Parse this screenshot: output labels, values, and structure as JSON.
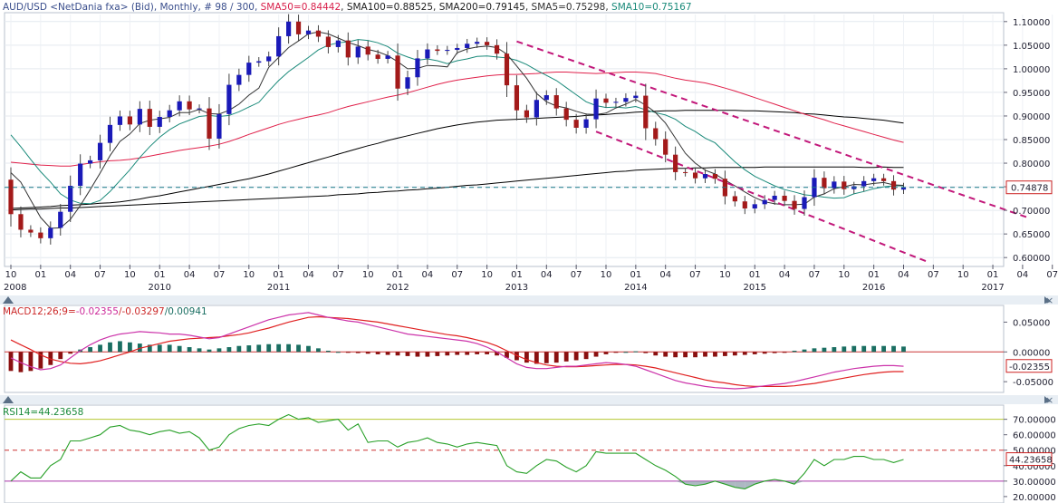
{
  "colors": {
    "up": "#1a1ab8",
    "down": "#a31a1a",
    "sma50": "#e0204a",
    "sma100": "#000000",
    "sma200": "#000000",
    "sma5": "#333333",
    "sma10": "#1a8a7a",
    "channel": "#c2187a",
    "macd": "#cc33aa",
    "signal": "#e02020",
    "hist_pos": "#1a6e62",
    "hist_neg": "#8a1010",
    "rsi": "#28a028",
    "rsi_upper": "#b4c832",
    "rsi_mid": "#cc3333",
    "rsi_lower": "#aa33aa",
    "current": "#1a7a8a"
  },
  "header": {
    "symbol": "AUD/USD <NetDania fxa> (Bid), Monthly, # 98 / 300, ",
    "sma50": "SMA50=0.84442",
    "sma100": "SMA100=0.88525",
    "sma200": "SMA200=0.79145",
    "sma5": "SMA5=0.75298",
    "sma10": "SMA10=0.75167"
  },
  "price_axis": [
    "1.10000",
    "1.05000",
    "1.00000",
    "0.95000",
    "0.90000",
    "0.85000",
    "0.80000",
    "0.75000",
    "0.70000",
    "0.65000",
    "0.60000"
  ],
  "current_price_label": "0.74878",
  "month_labels": [
    "10",
    "01",
    "04",
    "07",
    "10",
    "01",
    "04",
    "07",
    "10",
    "01",
    "04",
    "07",
    "10",
    "01",
    "04",
    "07",
    "10",
    "01",
    "04",
    "07",
    "10",
    "01",
    "04",
    "07",
    "10",
    "01",
    "04",
    "07",
    "10",
    "01",
    "04",
    "07",
    "10",
    "01",
    "04",
    "07"
  ],
  "year_labels": [
    "2008",
    "2010",
    "2011",
    "2012",
    "2013",
    "2014",
    "2015",
    "2016",
    "2017"
  ],
  "macd_header": {
    "name": "MACD12;26;9=",
    "v1": "-0.02355",
    "v2": "/-0.03297",
    "v3": "/0.00941"
  },
  "macd_axis": [
    "0.05000",
    "0.00000",
    "-0.05000"
  ],
  "macd_current_label": "-0.02355",
  "rsi_header": "RSI14=44.23658",
  "rsi_axis": [
    "70.00000",
    "60.00000",
    "50.00000",
    "40.00000",
    "30.00000",
    "20.00000"
  ],
  "rsi_current_label": "44.23658",
  "chart_data": {
    "type": "candlestick",
    "title": "AUD/USD <NetDania fxa> (Bid), Monthly",
    "price_range": [
      0.585,
      1.115
    ],
    "macd_range": [
      -0.065,
      0.075
    ],
    "rsi_range": [
      17,
      78
    ],
    "start_month": "2008-10",
    "closes": [
      0.692,
      0.659,
      0.653,
      0.641,
      0.663,
      0.697,
      0.752,
      0.799,
      0.806,
      0.843,
      0.881,
      0.899,
      0.882,
      0.915,
      0.877,
      0.898,
      0.912,
      0.931,
      0.914,
      0.916,
      0.852,
      0.904,
      0.966,
      0.987,
      1.013,
      1.016,
      1.026,
      1.069,
      1.1,
      1.073,
      1.081,
      1.068,
      1.046,
      1.06,
      1.024,
      1.047,
      1.03,
      1.021,
      1.028,
      0.958,
      0.982,
      1.022,
      1.041,
      1.038,
      1.04,
      1.044,
      1.053,
      1.057,
      1.05,
      1.032,
      0.965,
      0.912,
      0.897,
      0.934,
      0.944,
      0.916,
      0.892,
      0.875,
      0.893,
      0.937,
      0.928,
      0.93,
      0.938,
      0.943,
      0.874,
      0.851,
      0.818,
      0.781,
      0.78,
      0.768,
      0.777,
      0.767,
      0.73,
      0.719,
      0.704,
      0.713,
      0.722,
      0.731,
      0.72,
      0.703,
      0.728,
      0.769,
      0.747,
      0.761,
      0.745,
      0.751,
      0.762,
      0.768,
      0.762,
      0.744,
      0.749
    ],
    "sma5": [
      0.78,
      0.76,
      0.722,
      0.685,
      0.662,
      0.663,
      0.681,
      0.71,
      0.744,
      0.779,
      0.816,
      0.846,
      0.862,
      0.884,
      0.891,
      0.894,
      0.897,
      0.907,
      0.907,
      0.914,
      0.905,
      0.904,
      0.912,
      0.925,
      0.944,
      0.959,
      1.003,
      1.024,
      1.045,
      1.059,
      1.074,
      1.078,
      1.074,
      1.065,
      1.056,
      1.049,
      1.041,
      1.036,
      1.028,
      1.015,
      1.0,
      1.001,
      1.007,
      1.006,
      1.004,
      1.034,
      1.042,
      1.046,
      1.048,
      1.045,
      1.031,
      1.006,
      0.98,
      0.948,
      0.93,
      0.921,
      0.917,
      0.91,
      0.904,
      0.903,
      0.906,
      0.917,
      0.925,
      0.935,
      0.923,
      0.907,
      0.885,
      0.853,
      0.821,
      0.8,
      0.785,
      0.777,
      0.764,
      0.752,
      0.739,
      0.727,
      0.718,
      0.714,
      0.712,
      0.712,
      0.713,
      0.728,
      0.735,
      0.746,
      0.75,
      0.755,
      0.754,
      0.757,
      0.759,
      0.754,
      0.753
    ],
    "sma10": [
      0.86,
      0.835,
      0.808,
      0.782,
      0.76,
      0.735,
      0.722,
      0.715,
      0.714,
      0.721,
      0.74,
      0.763,
      0.786,
      0.812,
      0.835,
      0.855,
      0.871,
      0.883,
      0.891,
      0.899,
      0.901,
      0.899,
      0.901,
      0.909,
      0.919,
      0.929,
      0.953,
      0.975,
      0.994,
      1.009,
      1.024,
      1.04,
      1.05,
      1.055,
      1.057,
      1.062,
      1.06,
      1.055,
      1.047,
      1.033,
      1.025,
      1.018,
      1.021,
      1.017,
      1.011,
      1.017,
      1.021,
      1.026,
      1.027,
      1.025,
      1.023,
      1.018,
      1.009,
      0.997,
      0.986,
      0.975,
      0.96,
      0.945,
      0.93,
      0.922,
      0.918,
      0.919,
      0.917,
      0.92,
      0.913,
      0.907,
      0.902,
      0.893,
      0.878,
      0.867,
      0.853,
      0.843,
      0.823,
      0.803,
      0.786,
      0.772,
      0.762,
      0.752,
      0.744,
      0.739,
      0.733,
      0.731,
      0.728,
      0.726,
      0.727,
      0.735,
      0.74,
      0.746,
      0.75,
      0.752,
      0.752
    ],
    "sma50": [
      0.802,
      0.8,
      0.798,
      0.796,
      0.795,
      0.794,
      0.794,
      0.797,
      0.8,
      0.803,
      0.805,
      0.806,
      0.808,
      0.811,
      0.815,
      0.819,
      0.823,
      0.827,
      0.83,
      0.833,
      0.836,
      0.84,
      0.846,
      0.853,
      0.861,
      0.868,
      0.875,
      0.882,
      0.888,
      0.893,
      0.898,
      0.902,
      0.907,
      0.914,
      0.92,
      0.925,
      0.93,
      0.935,
      0.94,
      0.944,
      0.949,
      0.955,
      0.961,
      0.967,
      0.972,
      0.976,
      0.979,
      0.982,
      0.985,
      0.987,
      0.988,
      0.988,
      0.989,
      0.99,
      0.992,
      0.993,
      0.993,
      0.992,
      0.991,
      0.99,
      0.991,
      0.992,
      0.993,
      0.993,
      0.992,
      0.99,
      0.985,
      0.98,
      0.976,
      0.973,
      0.97,
      0.965,
      0.959,
      0.953,
      0.946,
      0.939,
      0.932,
      0.925,
      0.918,
      0.911,
      0.904,
      0.898,
      0.892,
      0.885,
      0.879,
      0.873,
      0.867,
      0.861,
      0.855,
      0.849,
      0.844
    ],
    "sma100": [
      0.704,
      0.705,
      0.706,
      0.707,
      0.708,
      0.71,
      0.711,
      0.712,
      0.713,
      0.715,
      0.716,
      0.718,
      0.721,
      0.724,
      0.728,
      0.731,
      0.735,
      0.739,
      0.743,
      0.747,
      0.751,
      0.755,
      0.759,
      0.763,
      0.767,
      0.772,
      0.777,
      0.783,
      0.789,
      0.795,
      0.801,
      0.807,
      0.813,
      0.819,
      0.825,
      0.831,
      0.837,
      0.842,
      0.848,
      0.853,
      0.858,
      0.863,
      0.868,
      0.873,
      0.877,
      0.881,
      0.884,
      0.887,
      0.889,
      0.891,
      0.892,
      0.893,
      0.894,
      0.895,
      0.896,
      0.897,
      0.898,
      0.899,
      0.901,
      0.902,
      0.903,
      0.905,
      0.906,
      0.908,
      0.909,
      0.91,
      0.911,
      0.911,
      0.912,
      0.912,
      0.912,
      0.912,
      0.912,
      0.912,
      0.911,
      0.911,
      0.91,
      0.909,
      0.908,
      0.907,
      0.905,
      0.904,
      0.902,
      0.9,
      0.898,
      0.897,
      0.895,
      0.893,
      0.891,
      0.888,
      0.885
    ],
    "sma200": [
      0.701,
      0.702,
      0.703,
      0.703,
      0.704,
      0.705,
      0.705,
      0.706,
      0.707,
      0.708,
      0.709,
      0.71,
      0.711,
      0.712,
      0.713,
      0.714,
      0.715,
      0.716,
      0.717,
      0.718,
      0.719,
      0.72,
      0.721,
      0.722,
      0.723,
      0.724,
      0.725,
      0.726,
      0.727,
      0.728,
      0.729,
      0.73,
      0.731,
      0.733,
      0.734,
      0.735,
      0.737,
      0.738,
      0.74,
      0.741,
      0.743,
      0.744,
      0.746,
      0.747,
      0.749,
      0.751,
      0.753,
      0.754,
      0.756,
      0.758,
      0.76,
      0.762,
      0.764,
      0.766,
      0.768,
      0.77,
      0.772,
      0.774,
      0.776,
      0.778,
      0.78,
      0.782,
      0.783,
      0.785,
      0.786,
      0.787,
      0.788,
      0.789,
      0.789,
      0.79,
      0.79,
      0.791,
      0.791,
      0.791,
      0.791,
      0.791,
      0.792,
      0.792,
      0.792,
      0.792,
      0.792,
      0.792,
      0.792,
      0.792,
      0.792,
      0.792,
      0.791,
      0.791,
      0.792,
      0.791,
      0.791
    ],
    "macd_line": [
      -0.01,
      -0.018,
      -0.025,
      -0.03,
      -0.028,
      -0.022,
      -0.01,
      0.002,
      0.012,
      0.02,
      0.026,
      0.03,
      0.032,
      0.034,
      0.033,
      0.032,
      0.03,
      0.03,
      0.028,
      0.025,
      0.022,
      0.024,
      0.03,
      0.036,
      0.042,
      0.048,
      0.054,
      0.058,
      0.062,
      0.064,
      0.066,
      0.062,
      0.058,
      0.055,
      0.052,
      0.05,
      0.046,
      0.042,
      0.038,
      0.034,
      0.03,
      0.028,
      0.026,
      0.024,
      0.022,
      0.02,
      0.018,
      0.014,
      0.008,
      0.0,
      -0.01,
      -0.02,
      -0.026,
      -0.028,
      -0.028,
      -0.026,
      -0.024,
      -0.024,
      -0.022,
      -0.02,
      -0.018,
      -0.019,
      -0.021,
      -0.024,
      -0.03,
      -0.036,
      -0.042,
      -0.048,
      -0.052,
      -0.055,
      -0.058,
      -0.06,
      -0.061,
      -0.062,
      -0.061,
      -0.059,
      -0.057,
      -0.055,
      -0.053,
      -0.05,
      -0.046,
      -0.042,
      -0.038,
      -0.034,
      -0.031,
      -0.028,
      -0.026,
      -0.024,
      -0.023,
      -0.023,
      -0.024
    ],
    "macd_signal": [
      0.02,
      0.012,
      0.004,
      -0.005,
      -0.012,
      -0.016,
      -0.019,
      -0.02,
      -0.018,
      -0.015,
      -0.01,
      -0.005,
      0.0,
      0.006,
      0.01,
      0.014,
      0.018,
      0.02,
      0.022,
      0.023,
      0.024,
      0.025,
      0.027,
      0.029,
      0.032,
      0.036,
      0.04,
      0.045,
      0.05,
      0.054,
      0.058,
      0.059,
      0.058,
      0.057,
      0.056,
      0.054,
      0.052,
      0.05,
      0.047,
      0.044,
      0.041,
      0.038,
      0.035,
      0.032,
      0.029,
      0.027,
      0.024,
      0.02,
      0.016,
      0.01,
      0.002,
      -0.006,
      -0.013,
      -0.018,
      -0.022,
      -0.024,
      -0.025,
      -0.025,
      -0.024,
      -0.023,
      -0.022,
      -0.021,
      -0.021,
      -0.022,
      -0.024,
      -0.027,
      -0.031,
      -0.035,
      -0.039,
      -0.043,
      -0.047,
      -0.05,
      -0.052,
      -0.055,
      -0.057,
      -0.058,
      -0.058,
      -0.058,
      -0.058,
      -0.057,
      -0.055,
      -0.053,
      -0.05,
      -0.047,
      -0.044,
      -0.041,
      -0.038,
      -0.036,
      -0.034,
      -0.033,
      -0.033
    ],
    "macd_hist": [
      -0.032,
      -0.034,
      -0.032,
      -0.028,
      -0.022,
      -0.012,
      -0.003,
      0.004,
      0.008,
      0.012,
      0.016,
      0.018,
      0.016,
      0.014,
      0.012,
      0.012,
      0.012,
      0.01,
      0.008,
      0.006,
      0.004,
      0.006,
      0.008,
      0.01,
      0.011,
      0.012,
      0.013,
      0.013,
      0.013,
      0.012,
      0.01,
      0.006,
      0.002,
      0.0,
      -0.001,
      -0.002,
      -0.003,
      -0.004,
      -0.005,
      -0.006,
      -0.007,
      -0.008,
      -0.008,
      -0.007,
      -0.006,
      -0.005,
      -0.005,
      -0.004,
      -0.004,
      -0.006,
      -0.01,
      -0.014,
      -0.018,
      -0.02,
      -0.019,
      -0.018,
      -0.016,
      -0.014,
      -0.012,
      -0.008,
      -0.004,
      -0.001,
      0.0,
      0.001,
      -0.002,
      -0.006,
      -0.008,
      -0.009,
      -0.009,
      -0.009,
      -0.008,
      -0.008,
      -0.007,
      -0.006,
      -0.005,
      -0.004,
      -0.003,
      -0.002,
      -0.001,
      0.002,
      0.004,
      0.006,
      0.007,
      0.008,
      0.009,
      0.01,
      0.01,
      0.01,
      0.01,
      0.01,
      0.009
    ],
    "rsi": [
      30,
      36,
      32,
      32,
      40,
      44,
      56,
      56,
      58,
      60,
      65,
      66,
      63,
      62,
      60,
      62,
      63,
      61,
      62,
      58,
      50,
      52,
      60,
      64,
      66,
      67,
      66,
      70,
      73,
      70,
      71,
      68,
      69,
      70,
      63,
      67,
      55,
      56,
      56,
      52,
      55,
      56,
      58,
      55,
      54,
      52,
      54,
      55,
      54,
      53,
      40,
      36,
      35,
      40,
      44,
      43,
      39,
      36,
      40,
      49,
      48,
      48,
      48,
      48,
      44,
      40,
      37,
      33,
      28,
      27,
      28,
      30,
      28,
      26,
      25,
      28,
      30,
      31,
      30,
      28,
      35,
      44,
      40,
      44,
      44,
      46,
      46,
      44,
      44,
      42,
      44
    ]
  }
}
